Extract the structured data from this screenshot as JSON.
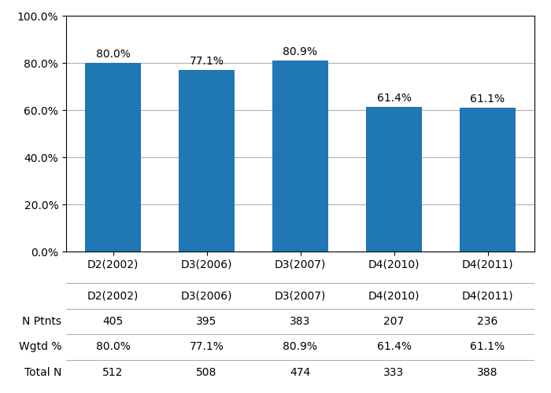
{
  "chart_data": {
    "type": "bar",
    "categories": [
      "D2(2002)",
      "D3(2006)",
      "D3(2007)",
      "D4(2010)",
      "D4(2011)"
    ],
    "values": [
      80.0,
      77.1,
      80.9,
      61.4,
      61.1
    ],
    "value_labels": [
      "80.0%",
      "77.1%",
      "80.9%",
      "61.4%",
      "61.1%"
    ],
    "data_labels": true,
    "ylim": [
      0,
      100
    ],
    "yticks": [
      {
        "value": 0,
        "label": "0.0%"
      },
      {
        "value": 20,
        "label": "20.0%"
      },
      {
        "value": 40,
        "label": "40.0%"
      },
      {
        "value": 60,
        "label": "60.0%"
      },
      {
        "value": 80,
        "label": "80.0%"
      },
      {
        "value": 100,
        "label": "100.0%"
      }
    ],
    "grid": true,
    "table": [
      {
        "name": "N Ptnts",
        "values": [
          405,
          395,
          383,
          207,
          236
        ]
      },
      {
        "name": "Wgtd %",
        "values": [
          80.0,
          77.1,
          80.9,
          61.4,
          61.1
        ],
        "value_labels": [
          "80.0%",
          "77.1%",
          "80.9%",
          "61.4%",
          "61.1%"
        ]
      },
      {
        "name": "Total N",
        "values": [
          512,
          508,
          474,
          333,
          388
        ]
      }
    ]
  }
}
